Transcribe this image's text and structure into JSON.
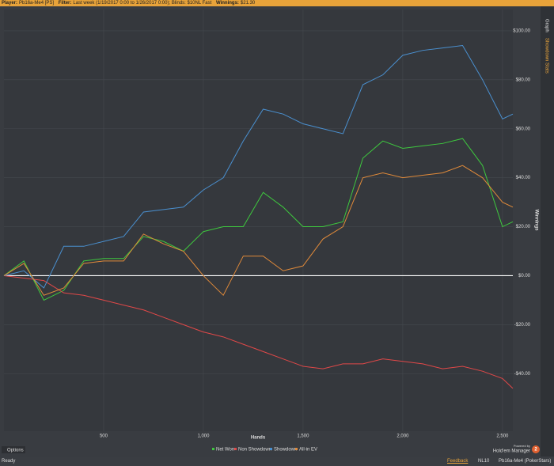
{
  "header": {
    "player_label": "Player:",
    "player": "Pb16a-Me4 [PS]",
    "filter_label": "Filter:",
    "filter": "Last week (1/19/2017 0:00 to 1/26/2017 0:00); Blinds: $10NL Fast",
    "winnings_label": "Winnings:",
    "winnings": "$21.30"
  },
  "tabs": [
    "Graph",
    "Showdown Stats"
  ],
  "chart_data": {
    "type": "line",
    "xlabel": "Hands",
    "ylabel": "Winnings",
    "x": [
      0,
      100,
      200,
      300,
      400,
      500,
      600,
      700,
      800,
      900,
      1000,
      1100,
      1200,
      1300,
      1400,
      1500,
      1600,
      1700,
      1800,
      1900,
      2000,
      2100,
      2200,
      2300,
      2400,
      2500,
      2552
    ],
    "series": [
      {
        "name": "Net Won",
        "color": "#3ec83e",
        "values": [
          0,
          6,
          -10,
          -6,
          6,
          7,
          7,
          16,
          14,
          10,
          18,
          20,
          20,
          34,
          28,
          20,
          20,
          22,
          48,
          55,
          52,
          53,
          54,
          56,
          45,
          20,
          22
        ]
      },
      {
        "name": "Non Showdown",
        "color": "#e04848",
        "values": [
          0,
          -1,
          -2,
          -7,
          -8,
          -10,
          -12,
          -14,
          -17,
          -20,
          -23,
          -25,
          -28,
          -31,
          -34,
          -37,
          -38,
          -36,
          -36,
          -34,
          -35,
          -36,
          -38,
          -37,
          -39,
          -42,
          -46
        ]
      },
      {
        "name": "Showdown",
        "color": "#4a90d0",
        "values": [
          0,
          2,
          -5,
          12,
          12,
          14,
          16,
          26,
          27,
          28,
          35,
          40,
          55,
          68,
          66,
          62,
          60,
          58,
          78,
          82,
          90,
          92,
          93,
          94,
          80,
          64,
          66
        ]
      },
      {
        "name": "All-in EV",
        "color": "#e08a3a",
        "values": [
          0,
          5,
          -8,
          -5,
          5,
          6,
          6,
          17,
          13,
          10,
          0,
          -8,
          8,
          8,
          2,
          4,
          15,
          20,
          40,
          42,
          40,
          41,
          42,
          45,
          40,
          30,
          28
        ]
      }
    ],
    "xlim": [
      0,
      2552
    ],
    "xticks": [
      500,
      {
        "value": 1000,
        "label": "1,000"
      },
      {
        "value": 1500,
        "label": "1,500"
      },
      {
        "value": 2000,
        "label": "2,000"
      },
      {
        "value": 2500,
        "label": "2,500"
      }
    ],
    "ylim": [
      -63.5,
      108.7
    ],
    "yticks": [
      {
        "value": 100,
        "label": "$100.00"
      },
      {
        "value": 80,
        "label": "$80.00"
      },
      {
        "value": 60,
        "label": "$60.00"
      },
      {
        "value": 40,
        "label": "$40.00"
      },
      {
        "value": 20,
        "label": "$20.00"
      },
      {
        "value": 0,
        "label": "$0.00"
      },
      {
        "value": -20,
        "label": "-$20.00"
      },
      {
        "value": -40,
        "label": "-$40.00"
      }
    ],
    "grid": true
  },
  "footer": {
    "options": "Options",
    "powered_by": "Powered by",
    "brand": "Hold'em Manager",
    "brand_version": "2",
    "status": "Ready",
    "feedback": "Feedback",
    "stake": "NL10",
    "account": "Pb16a-Me4 (PokerStars)"
  }
}
